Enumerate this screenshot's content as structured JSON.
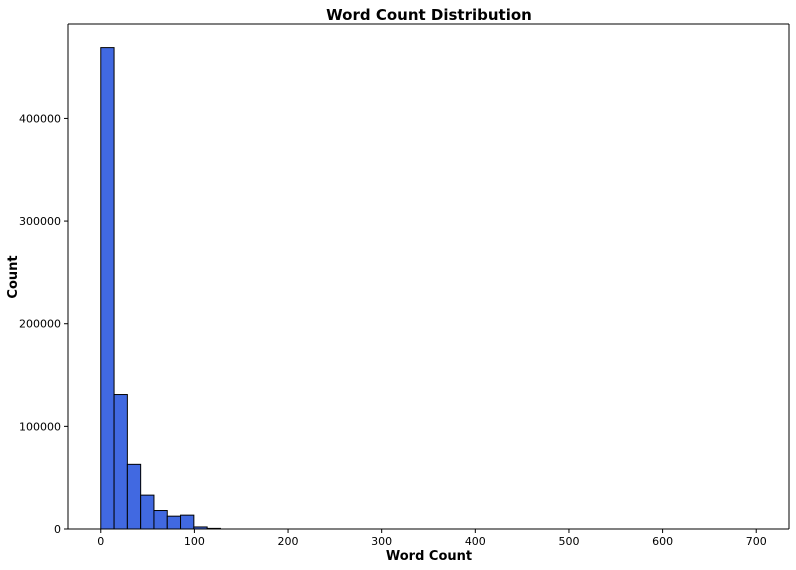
{
  "chart_data": {
    "type": "bar",
    "title": "Word Count Distribution",
    "xlabel": "Word Count",
    "ylabel": "Count",
    "xlim": [
      -35,
      735
    ],
    "ylim": [
      0,
      492000
    ],
    "x_ticks": [
      "0",
      "100",
      "200",
      "300",
      "400",
      "500",
      "600",
      "700"
    ],
    "x_tick_values": [
      0,
      100,
      200,
      300,
      400,
      500,
      600,
      700
    ],
    "y_ticks": [
      "0",
      "100000",
      "200000",
      "300000",
      "400000"
    ],
    "y_tick_values": [
      0,
      100000,
      200000,
      300000,
      400000
    ],
    "bin_edges": [
      0,
      14.2,
      28.4,
      42.6,
      56.8,
      71.0,
      85.2,
      99.4,
      113.6,
      127.8
    ],
    "values": [
      469000,
      131000,
      63000,
      33000,
      18000,
      12500,
      13500,
      2000,
      600
    ],
    "bar_color": "#4169e1",
    "edge_color": "#000000",
    "grid": false
  }
}
